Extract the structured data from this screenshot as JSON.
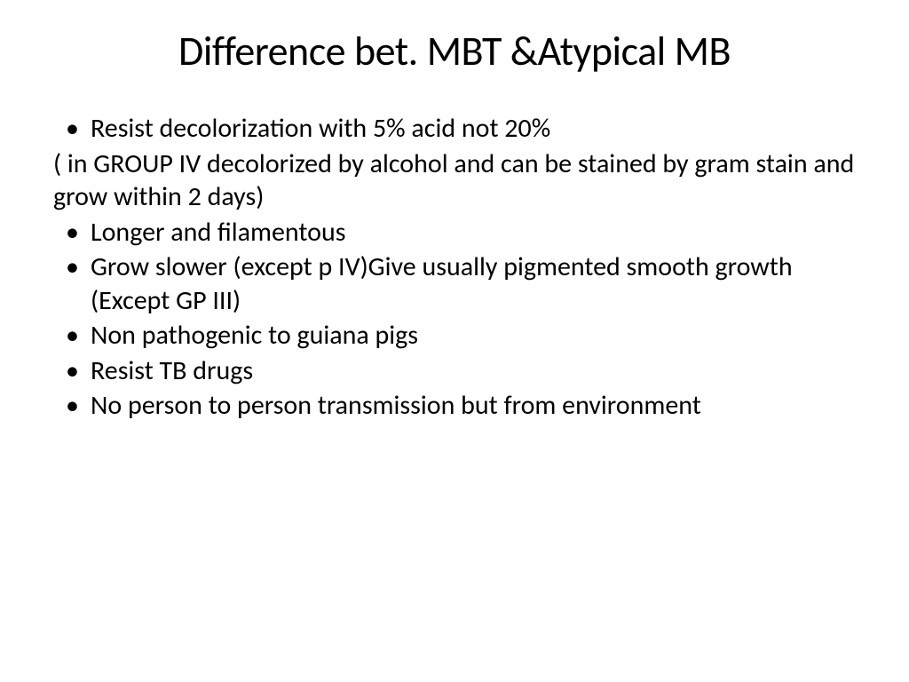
{
  "slide": {
    "title": "Difference bet. MBT &Atypical MB",
    "background_color": "#ffffff",
    "text_color": "#000000",
    "title_fontsize": 46,
    "body_fontsize": 30,
    "font_family": "Calibri",
    "items": [
      {
        "type": "bullet",
        "text": "Resist decolorization with 5% acid not 20%"
      },
      {
        "type": "paragraph",
        "text": "( in GROUP IV decolorized by alcohol and can be stained by gram stain and grow within 2 days)"
      },
      {
        "type": "bullet",
        "text": "Longer and filamentous"
      },
      {
        "type": "bullet",
        "text": "Grow slower (except p IV)Give usually pigmented smooth growth (Except GP III)"
      },
      {
        "type": "bullet",
        "text": "Non pathogenic to guiana pigs"
      },
      {
        "type": "bullet",
        "text": "Resist TB drugs"
      },
      {
        "type": "bullet",
        "text": "No person to person transmission but from environment"
      }
    ]
  }
}
